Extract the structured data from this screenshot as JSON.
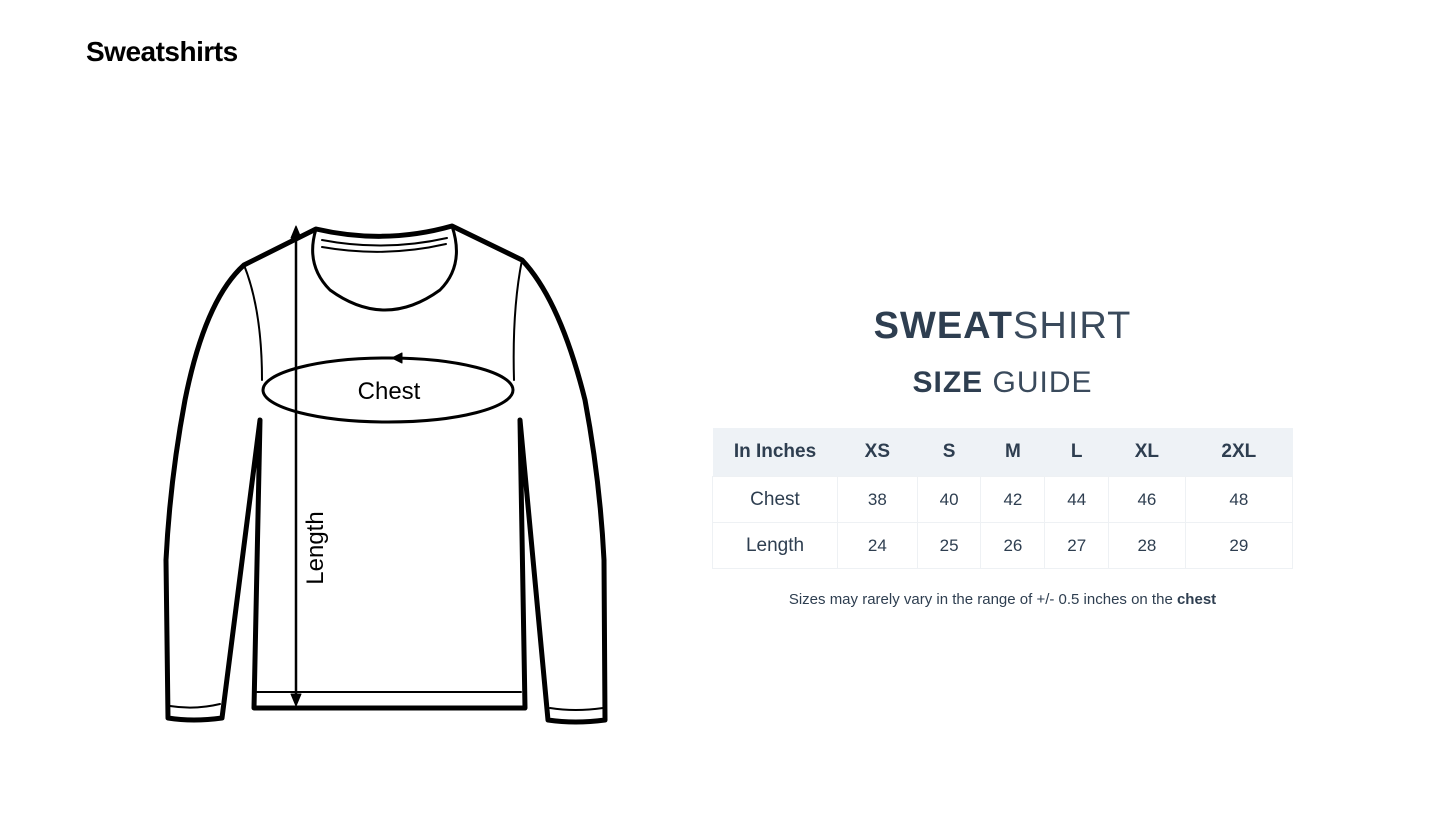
{
  "page_title": "Sweatshirts",
  "diagram": {
    "chest_label": "Chest",
    "length_label": "Length"
  },
  "guide": {
    "title_bold": "SWEAT",
    "title_light": "SHIRT",
    "subtitle_bold": "SIZE",
    "subtitle_light": "GUIDE"
  },
  "table": {
    "headers": [
      "In Inches",
      "XS",
      "S",
      "M",
      "L",
      "XL",
      "2XL"
    ],
    "rows": [
      {
        "label": "Chest",
        "values": [
          "38",
          "40",
          "42",
          "44",
          "46",
          "48"
        ]
      },
      {
        "label": "Length",
        "values": [
          "24",
          "25",
          "26",
          "27",
          "28",
          "29"
        ]
      }
    ]
  },
  "note": {
    "text": "Sizes may rarely vary in the range of +/- 0.5 inches on the ",
    "bold": "chest"
  },
  "colors": {
    "text": "#2e3e50",
    "header_bg": "#eef2f6"
  }
}
